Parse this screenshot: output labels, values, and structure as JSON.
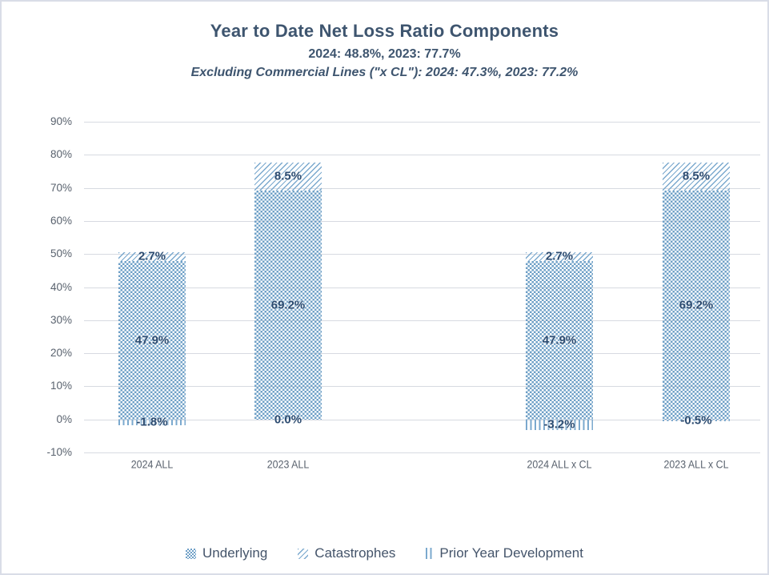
{
  "header": {
    "title": "Year to Date Net Loss Ratio Components",
    "subtitle": "2024: 48.8%, 2023: 77.7%",
    "subtitle_excl": "Excluding Commercial Lines (\"x CL\"): 2024: 47.3%, 2023: 77.2%"
  },
  "chart_data": {
    "type": "bar",
    "stacked": true,
    "categories": [
      "2024 ALL",
      "2023 ALL",
      "2024 ALL x CL",
      "2023 ALL x CL"
    ],
    "series": [
      {
        "name": "Underlying",
        "pattern": "dots",
        "values": [
          47.9,
          69.2,
          47.9,
          69.2
        ]
      },
      {
        "name": "Catastrophes",
        "pattern": "diagonal-hatch",
        "values": [
          2.7,
          8.5,
          2.7,
          8.5
        ]
      },
      {
        "name": "Prior Year Development",
        "pattern": "vertical-lines",
        "values": [
          -1.8,
          0.0,
          -3.2,
          -0.5
        ]
      }
    ],
    "totals": [
      48.8,
      77.7,
      47.3,
      77.2
    ],
    "ylabel": "",
    "xlabel": "",
    "ylim": [
      -10,
      90
    ],
    "ytick_step": 10,
    "ytick_format": "percent",
    "grid": true,
    "legend_position": "bottom",
    "value_label_format": "one-decimal-percent",
    "colors": {
      "pattern_blue": "#6FA0C7",
      "hatch_blue": "#7BA9CE",
      "value_label": "#2C4B70",
      "axis_text": "#59626E",
      "gridline": "#D7DAE1",
      "title_text": "#3E556F",
      "legend_text": "#44546A",
      "page_border": "#D9DDE7"
    }
  }
}
